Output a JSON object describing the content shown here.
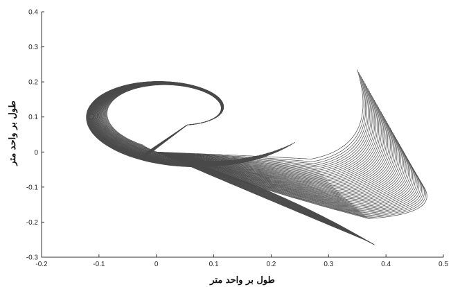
{
  "chart_data": {
    "type": "line",
    "title": "",
    "xlabel": "طول بر واحد متر",
    "ylabel": "طول بر واحد متر",
    "xlim": [
      -0.2,
      0.5
    ],
    "ylim": [
      -0.3,
      0.4
    ],
    "xticks": [
      "-0.2",
      "-0.1",
      "0",
      "0.1",
      "0.2",
      "0.3",
      "0.4",
      "0.5"
    ],
    "yticks": [
      "-0.3",
      "-0.2",
      "-0.1",
      "0",
      "0.1",
      "0.2",
      "0.3",
      "0.4"
    ],
    "grid": false,
    "legend": "none",
    "line_color": "#4a4a4a",
    "families": [
      {
        "name_hint": "left spiral family",
        "count": 50,
        "origin": [
          0,
          0
        ],
        "start_tip_range": [
          [
            -0.04,
            -0.015
          ],
          [
            -0.03,
            -0.015
          ]
        ],
        "outer_tip_range": [
          [
            0.06,
            0.25
          ],
          [
            0.09,
            0.31
          ]
        ],
        "extent": "spirals counter-clockwise from origin around hole centered near (0.03, 0.12) out to tips near x 0.09-0.19, y 0.13-0.31"
      },
      {
        "name_hint": "right fan family",
        "count": 50,
        "origin": [
          0,
          0
        ],
        "bottom_point": [
          0.38,
          -0.265
        ],
        "top_tip_range": [
          [
            0.348,
            0.235
          ],
          [
            0.462,
            -0.09
          ]
        ],
        "extent": "fan from origin to lower-right cusp then up to tips between x 0.35 and 0.46"
      }
    ]
  }
}
